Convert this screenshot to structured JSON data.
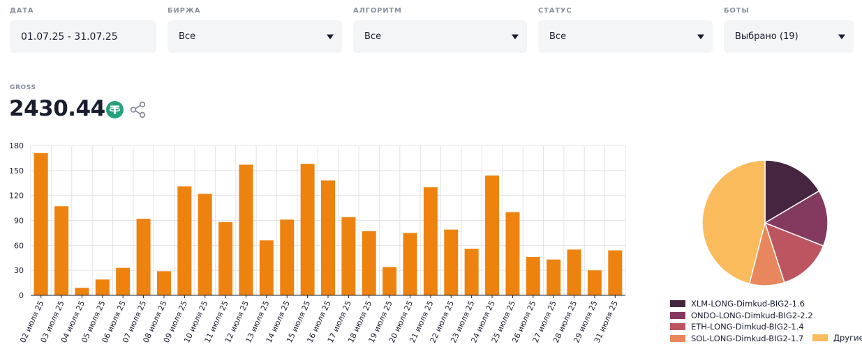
{
  "filters": [
    {
      "label": "ДАТА",
      "value": "01.07.25 - 31.07.25",
      "dropdown": false
    },
    {
      "label": "БИРЖА",
      "value": "Все",
      "dropdown": true
    },
    {
      "label": "АЛГОРИТМ",
      "value": "Все",
      "dropdown": true
    },
    {
      "label": "СТАТУС",
      "value": "Все",
      "dropdown": true
    },
    {
      "label": "БОТЫ",
      "value": "Выбрано (19)",
      "dropdown": true
    }
  ],
  "gross": {
    "label": "GROSS",
    "value": "2430.44"
  },
  "colors": {
    "bar": "#ee820e",
    "grid": "#e4e4e4",
    "tether": "#26a17b",
    "share": "#8b8f9e"
  },
  "chart_data": [
    {
      "type": "bar",
      "categories": [
        "02 июля 25",
        "03 июля 25",
        "04 июля 25",
        "05 июля 25",
        "06 июля 25",
        "07 июля 25",
        "08 июля 25",
        "09 июля 25",
        "10 июля 25",
        "11 июля 25",
        "12 июля 25",
        "13 июля 25",
        "14 июля 25",
        "15 июля 25",
        "16 июля 25",
        "17 июля 25",
        "18 июля 25",
        "19 июля 25",
        "20 июля 25",
        "21 июля 25",
        "22 июля 25",
        "23 июля 25",
        "24 июля 25",
        "25 июля 25",
        "26 июля 25",
        "27 июля 25",
        "28 июля 25",
        "29 июля 25",
        "31 июля 25"
      ],
      "values": [
        171,
        107,
        9,
        19,
        33,
        92,
        29,
        131,
        122,
        88,
        157,
        66,
        91,
        158,
        138,
        94,
        77,
        34,
        75,
        130,
        79,
        56,
        144,
        100,
        46,
        43,
        55,
        30,
        54
      ],
      "yticks": [
        0,
        30,
        60,
        90,
        120,
        150,
        180
      ],
      "ylim": [
        0,
        180
      ],
      "grid": true
    },
    {
      "type": "pie",
      "slices": [
        {
          "name": "XLM-LONG-Dimkud-BIG2-1.6",
          "value": 16.5,
          "color": "#45253f"
        },
        {
          "name": "ONDO-LONG-Dimkud-BIG2-2.2",
          "value": 14.5,
          "color": "#843a5e"
        },
        {
          "name": "ETH-LONG-Dimkud-BIG2-1.4",
          "value": 14.0,
          "color": "#bc5560"
        },
        {
          "name": "SOL-LONG-Dimkud-BIG2-1.7",
          "value": 9.0,
          "color": "#e8875d"
        },
        {
          "name": "Другие",
          "value": 46.0,
          "color": "#fabb5c"
        }
      ],
      "legend": "bottom"
    }
  ]
}
